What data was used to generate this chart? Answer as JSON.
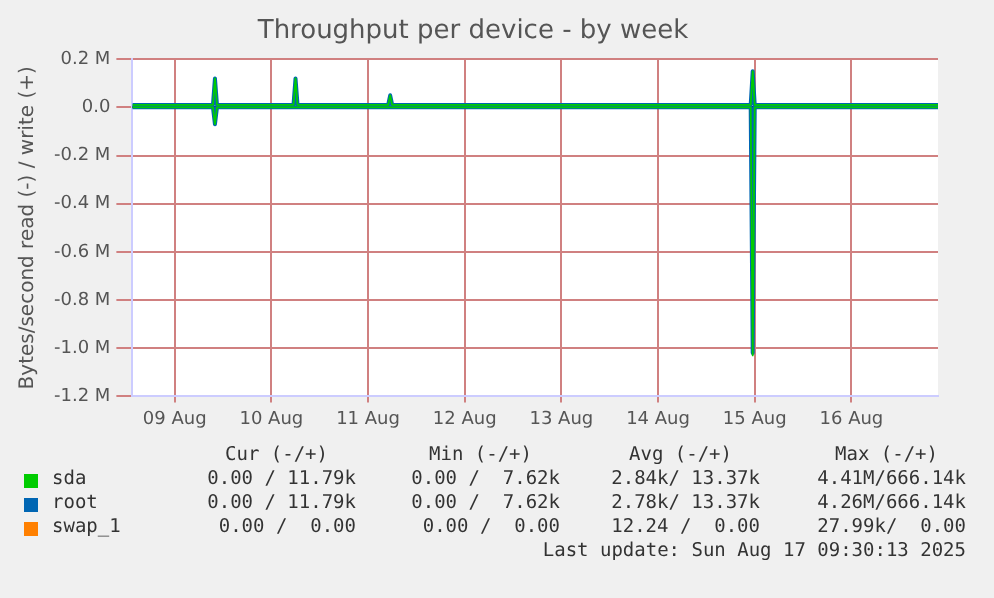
{
  "chart_data": {
    "type": "line",
    "title": "Throughput per device - by week",
    "ylabel": "Bytes/second read (-) / write (+)",
    "x": [
      "2025-08-09T01:30",
      "2025-08-09T21:30",
      "2025-08-09T22:00",
      "2025-08-09T22:30",
      "2025-08-10T17:30",
      "2025-08-10T18:00",
      "2025-08-10T18:30",
      "2025-08-11T17:00",
      "2025-08-11T17:30",
      "2025-08-11T18:00",
      "2025-08-15T11:00",
      "2025-08-15T11:30",
      "2025-08-15T12:00",
      "2025-08-17T09:30"
    ],
    "series": [
      {
        "name": "sda",
        "color": "#00cc00",
        "values": [
          0.01,
          0.01,
          0.12,
          0.01,
          0.01,
          0.12,
          0.01,
          0.01,
          0.05,
          0.01,
          0.01,
          0.15,
          0.01,
          0.01
        ]
      },
      {
        "color": "#00cc00",
        "values": [
          0,
          0,
          -0.07,
          0,
          0,
          0,
          0,
          0,
          0,
          0,
          0,
          -1.03,
          0,
          0
        ]
      },
      {
        "name": "root",
        "color": "#0066b3",
        "values": [
          0.01,
          0.01,
          0.12,
          0.01,
          0.01,
          0.12,
          0.01,
          0.01,
          0.05,
          0.01,
          0.01,
          0.15,
          0.01,
          0.01
        ]
      },
      {
        "color": "#0066b3",
        "values": [
          0,
          0,
          -0.07,
          0,
          0,
          0,
          0,
          0,
          0,
          0,
          0,
          -1.02,
          0,
          0
        ]
      },
      {
        "name": "swap_1",
        "color": "#ff8000",
        "values": [
          null,
          null,
          null,
          null,
          null,
          null,
          null,
          null,
          null,
          null,
          null,
          null,
          null,
          null
        ]
      }
    ],
    "xlim": [
      "2025-08-09T01:30",
      "2025-08-17T09:30"
    ],
    "xticks": [
      {
        "value": "2025-08-09T12:00",
        "label": "09 Aug"
      },
      {
        "value": "2025-08-10T12:00",
        "label": "10 Aug"
      },
      {
        "value": "2025-08-11T12:00",
        "label": "11 Aug"
      },
      {
        "value": "2025-08-12T12:00",
        "label": "12 Aug"
      },
      {
        "value": "2025-08-13T12:00",
        "label": "13 Aug"
      },
      {
        "value": "2025-08-14T12:00",
        "label": "14 Aug"
      },
      {
        "value": "2025-08-15T12:00",
        "label": "15 Aug"
      },
      {
        "value": "2025-08-16T12:00",
        "label": "16 Aug"
      }
    ],
    "ylim": [
      -1.2,
      0.2
    ],
    "yticks": [
      {
        "value": -1.2,
        "label": "-1.2 M"
      },
      {
        "value": -1.0,
        "label": "-1.0 M"
      },
      {
        "value": -0.8,
        "label": "-0.8 M"
      },
      {
        "value": -0.6,
        "label": "-0.6 M"
      },
      {
        "value": -0.4,
        "label": "-0.4 M"
      },
      {
        "value": -0.2,
        "label": "-0.2 M"
      },
      {
        "value": 0,
        "label": "0.0"
      },
      {
        "value": 0.2,
        "label": "0.2 M"
      }
    ],
    "ref_lines": [
      {
        "axis": "y",
        "value": 0,
        "color": "#000000"
      }
    ],
    "grid": true,
    "legend": "bottom",
    "marker": "none",
    "line_style": "solid",
    "annotations": [
      "Cur (-/+)",
      "Min (-/+)",
      "Avg (-/+)",
      "Max (-/+)",
      "0.00 / 11.79k",
      "0.00 /  7.62k",
      "2.84k/ 13.37k",
      "4.41M/666.14k",
      "0.00 / 11.79k",
      "0.00 /  7.62k",
      "2.78k/ 13.37k",
      "4.26M/666.14k",
      "0.00 /  0.00",
      "0.00 /  0.00",
      "12.24 /  0.00",
      "27.99k/  0.00",
      "Last update: Sun Aug 17 09:30:13 2025"
    ]
  }
}
